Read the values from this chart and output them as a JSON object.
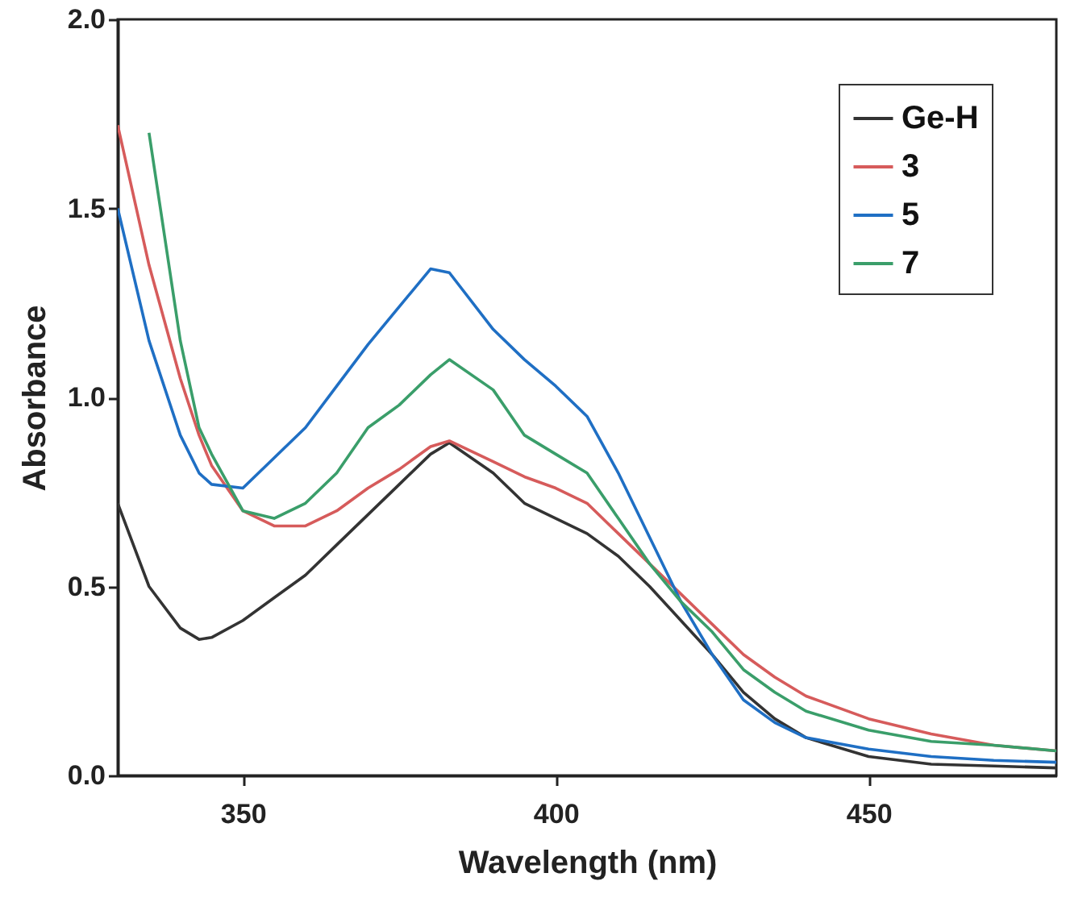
{
  "chart_data": {
    "type": "line",
    "xlabel": "Wavelength (nm)",
    "ylabel": "Absorbance",
    "xlim": [
      330,
      480
    ],
    "xticks": [
      350,
      400,
      450
    ],
    "ylim": [
      0,
      2
    ],
    "yticks": [
      {
        "value": 0,
        "label": "0.0"
      },
      {
        "value": 0.5,
        "label": "0.5"
      },
      {
        "value": 1,
        "label": "1.0"
      },
      {
        "value": 1.5,
        "label": "1.5"
      },
      {
        "value": 2,
        "label": "2.0"
      }
    ],
    "grid": false,
    "legend": "top right",
    "x": [
      330,
      335,
      340,
      343,
      345,
      350,
      355,
      360,
      365,
      370,
      375,
      380,
      383,
      390,
      395,
      400,
      405,
      410,
      415,
      420,
      425,
      430,
      435,
      440,
      450,
      460,
      470,
      480
    ],
    "series": [
      {
        "name": "Ge-H",
        "color": "#333333",
        "values": [
          0.72,
          0.5,
          0.39,
          0.36,
          0.365,
          0.41,
          0.47,
          0.53,
          0.61,
          0.69,
          0.77,
          0.85,
          0.88,
          0.8,
          0.72,
          0.68,
          0.64,
          0.58,
          0.5,
          0.41,
          0.32,
          0.22,
          0.15,
          0.1,
          0.05,
          0.03,
          0.025,
          0.02
        ]
      },
      {
        "name": "3",
        "color": "#d65b5b",
        "values": [
          1.72,
          1.35,
          1.05,
          0.9,
          0.82,
          0.7,
          0.66,
          0.66,
          0.7,
          0.76,
          0.81,
          0.87,
          0.885,
          0.83,
          0.79,
          0.76,
          0.72,
          0.64,
          0.56,
          0.48,
          0.4,
          0.32,
          0.26,
          0.21,
          0.15,
          0.11,
          0.08,
          0.065
        ]
      },
      {
        "name": "5",
        "color": "#1f6fc4",
        "values": [
          1.5,
          1.15,
          0.9,
          0.8,
          0.77,
          0.76,
          0.84,
          0.92,
          1.03,
          1.14,
          1.24,
          1.34,
          1.33,
          1.18,
          1.1,
          1.03,
          0.95,
          0.8,
          0.63,
          0.46,
          0.32,
          0.2,
          0.14,
          0.1,
          0.07,
          0.05,
          0.04,
          0.035
        ]
      },
      {
        "name": "7",
        "color": "#3a9e6a",
        "values": [
          null,
          1.7,
          1.15,
          0.92,
          0.85,
          0.7,
          0.68,
          0.72,
          0.8,
          0.92,
          0.98,
          1.06,
          1.1,
          1.02,
          0.9,
          0.85,
          0.8,
          0.68,
          0.56,
          0.46,
          0.38,
          0.28,
          0.22,
          0.17,
          0.12,
          0.09,
          0.08,
          0.065
        ]
      }
    ]
  }
}
